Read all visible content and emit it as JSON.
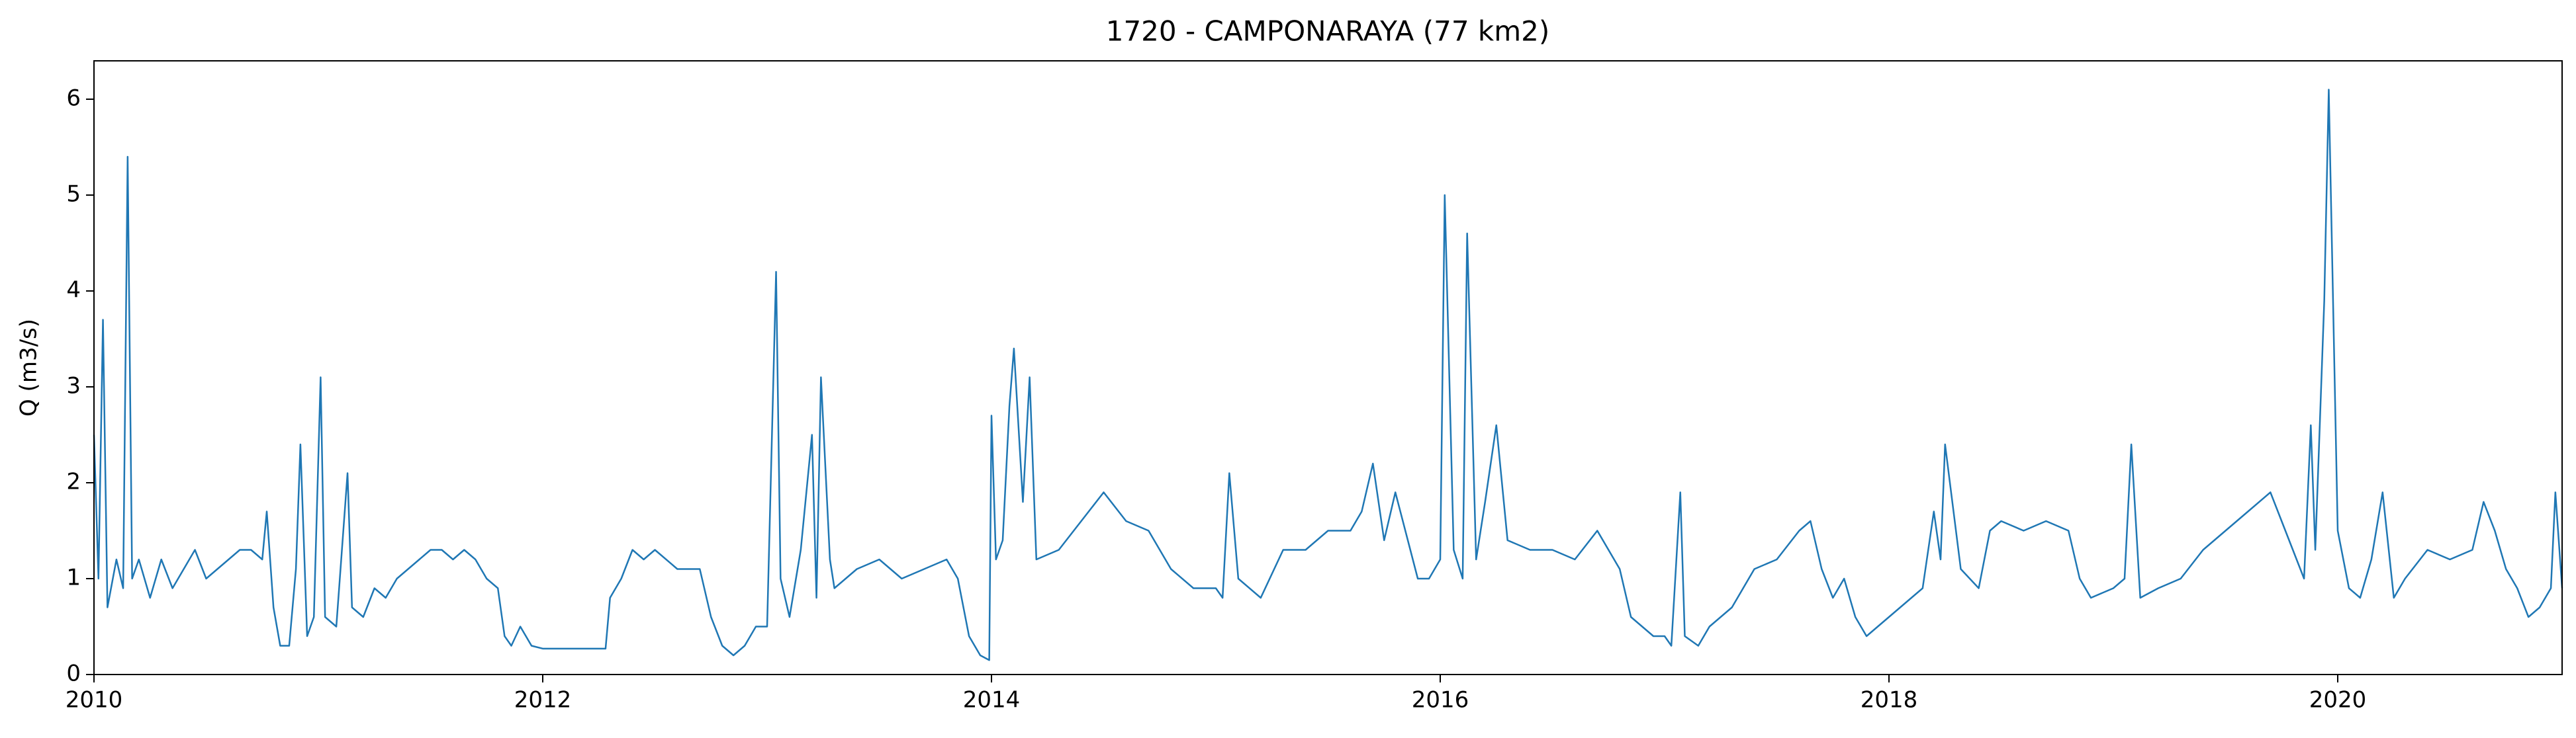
{
  "chart_data": {
    "type": "line",
    "title": "1720 - CAMPONARAYA (77 km2)",
    "ylabel": "Q (m3/s)",
    "color": "#1f77b4",
    "xlim": [
      2010,
      2021
    ],
    "xticks": [
      2010,
      2012,
      2014,
      2016,
      2018,
      2020
    ],
    "ylim": [
      0,
      6.4
    ],
    "yticks": [
      0,
      1,
      2,
      3,
      4,
      5,
      6
    ],
    "grid": false,
    "x": [
      2010.0,
      2010.02,
      2010.04,
      2010.06,
      2010.1,
      2010.13,
      2010.15,
      2010.17,
      2010.2,
      2010.25,
      2010.3,
      2010.35,
      2010.4,
      2010.45,
      2010.5,
      2010.55,
      2010.6,
      2010.65,
      2010.7,
      2010.75,
      2010.77,
      2010.8,
      2010.83,
      2010.87,
      2010.9,
      2010.92,
      2010.95,
      2010.98,
      2011.01,
      2011.03,
      2011.08,
      2011.13,
      2011.15,
      2011.2,
      2011.25,
      2011.3,
      2011.35,
      2011.4,
      2011.45,
      2011.5,
      2011.55,
      2011.6,
      2011.65,
      2011.7,
      2011.75,
      2011.8,
      2011.83,
      2011.86,
      2011.9,
      2011.95,
      2012.0,
      2012.28,
      2012.3,
      2012.35,
      2012.4,
      2012.45,
      2012.5,
      2012.6,
      2012.7,
      2012.75,
      2012.8,
      2012.85,
      2012.9,
      2012.95,
      2013.0,
      2013.04,
      2013.06,
      2013.1,
      2013.15,
      2013.2,
      2013.22,
      2013.24,
      2013.28,
      2013.3,
      2013.4,
      2013.5,
      2013.6,
      2013.7,
      2013.8,
      2013.85,
      2013.9,
      2013.95,
      2013.99,
      2014.0,
      2014.02,
      2014.05,
      2014.08,
      2014.1,
      2014.14,
      2014.17,
      2014.2,
      2014.3,
      2014.4,
      2014.5,
      2014.6,
      2014.7,
      2014.8,
      2014.9,
      2015.0,
      2015.03,
      2015.06,
      2015.1,
      2015.2,
      2015.3,
      2015.4,
      2015.5,
      2015.6,
      2015.65,
      2015.7,
      2015.75,
      2015.8,
      2015.9,
      2015.95,
      2016.0,
      2016.02,
      2016.06,
      2016.1,
      2016.12,
      2016.16,
      2016.2,
      2016.25,
      2016.3,
      2016.4,
      2016.5,
      2016.6,
      2016.7,
      2016.8,
      2016.85,
      2016.9,
      2016.95,
      2017.0,
      2017.03,
      2017.07,
      2017.09,
      2017.15,
      2017.2,
      2017.3,
      2017.4,
      2017.5,
      2017.6,
      2017.65,
      2017.7,
      2017.75,
      2017.8,
      2017.85,
      2017.9,
      2018.0,
      2018.1,
      2018.15,
      2018.2,
      2018.23,
      2018.25,
      2018.32,
      2018.4,
      2018.45,
      2018.5,
      2018.6,
      2018.7,
      2018.8,
      2018.85,
      2018.9,
      2019.0,
      2019.05,
      2019.08,
      2019.12,
      2019.2,
      2019.3,
      2019.4,
      2019.5,
      2019.6,
      2019.7,
      2019.75,
      2019.8,
      2019.85,
      2019.88,
      2019.9,
      2019.94,
      2019.96,
      2020.0,
      2020.05,
      2020.1,
      2020.15,
      2020.2,
      2020.25,
      2020.3,
      2020.4,
      2020.5,
      2020.6,
      2020.65,
      2020.7,
      2020.75,
      2020.8,
      2020.85,
      2020.9,
      2020.95,
      2020.97,
      2021.0
    ],
    "values": [
      2.5,
      1.0,
      3.7,
      0.7,
      1.2,
      0.9,
      5.4,
      1.0,
      1.2,
      0.8,
      1.2,
      0.9,
      1.1,
      1.3,
      1.0,
      1.1,
      1.2,
      1.3,
      1.3,
      1.2,
      1.7,
      0.7,
      0.3,
      0.3,
      1.1,
      2.4,
      0.4,
      0.6,
      3.1,
      0.6,
      0.5,
      2.1,
      0.7,
      0.6,
      0.9,
      0.8,
      1.0,
      1.1,
      1.2,
      1.3,
      1.3,
      1.2,
      1.3,
      1.2,
      1.0,
      0.9,
      0.4,
      0.3,
      0.5,
      0.3,
      0.27,
      0.27,
      0.8,
      1.0,
      1.3,
      1.2,
      1.3,
      1.1,
      1.1,
      0.6,
      0.3,
      0.2,
      0.3,
      0.5,
      0.5,
      4.2,
      1.0,
      0.6,
      1.3,
      2.5,
      0.8,
      3.1,
      1.2,
      0.9,
      1.1,
      1.2,
      1.0,
      1.1,
      1.2,
      1.0,
      0.4,
      0.2,
      0.15,
      2.7,
      1.2,
      1.4,
      2.8,
      3.4,
      1.8,
      3.1,
      1.2,
      1.3,
      1.6,
      1.9,
      1.6,
      1.5,
      1.1,
      0.9,
      0.9,
      0.8,
      2.1,
      1.0,
      0.8,
      1.3,
      1.3,
      1.5,
      1.5,
      1.7,
      2.2,
      1.4,
      1.9,
      1.0,
      1.0,
      1.2,
      5.0,
      1.3,
      1.0,
      4.6,
      1.2,
      1.8,
      2.6,
      1.4,
      1.3,
      1.3,
      1.2,
      1.5,
      1.1,
      0.6,
      0.5,
      0.4,
      0.4,
      0.3,
      1.9,
      0.4,
      0.3,
      0.5,
      0.7,
      1.1,
      1.2,
      1.5,
      1.6,
      1.1,
      0.8,
      1.0,
      0.6,
      0.4,
      0.6,
      0.8,
      0.9,
      1.7,
      1.2,
      2.4,
      1.1,
      0.9,
      1.5,
      1.6,
      1.5,
      1.6,
      1.5,
      1.0,
      0.8,
      0.9,
      1.0,
      2.4,
      0.8,
      0.9,
      1.0,
      1.3,
      1.5,
      1.7,
      1.9,
      1.6,
      1.3,
      1.0,
      2.6,
      1.3,
      3.9,
      6.1,
      1.5,
      0.9,
      0.8,
      1.2,
      1.9,
      0.8,
      1.0,
      1.3,
      1.2,
      1.3,
      1.8,
      1.5,
      1.1,
      0.9,
      0.6,
      0.7,
      0.9,
      1.9,
      0.9
    ]
  }
}
